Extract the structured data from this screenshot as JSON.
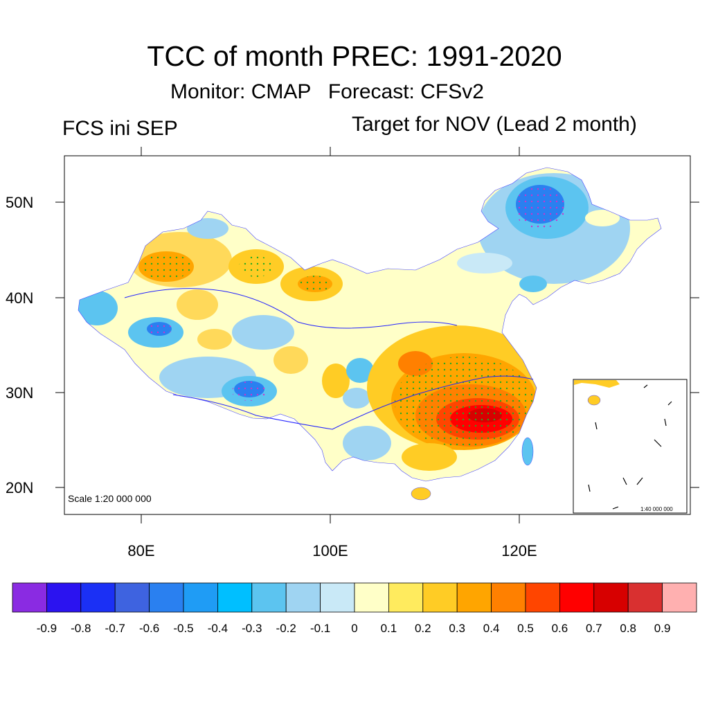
{
  "title": "TCC of month PREC: 1991-2020",
  "subtitle": "Monitor: CMAP   Forecast: CFSv2",
  "left_label": "FCS ini SEP",
  "right_label": "Target for NOV (Lead 2 month)",
  "scale_main": "Scale 1:20 000 000",
  "scale_inset": "1:40 000 000",
  "axes": {
    "lat_labels": [
      "50N",
      "40N",
      "30N",
      "20N"
    ],
    "lon_labels": [
      "80E",
      "100E",
      "120E"
    ]
  },
  "colorbar": {
    "labels": [
      "-0.9",
      "-0.8",
      "-0.7",
      "-0.6",
      "-0.5",
      "-0.4",
      "-0.3",
      "-0.2",
      "-0.1",
      "0",
      "0.1",
      "0.2",
      "0.3",
      "0.4",
      "0.5",
      "0.6",
      "0.7",
      "0.8",
      "0.9"
    ],
    "colors": [
      "#8a2be2",
      "#2b13f0",
      "#1b30f5",
      "#3e63e0",
      "#2a80f0",
      "#1f9cf5",
      "#00bfff",
      "#5cc4f0",
      "#9fd4f2",
      "#c9e9f7",
      "#ffffc8",
      "#ffeb5e",
      "#ffcc25",
      "#ffa500",
      "#ff8000",
      "#ff4500",
      "#ff0000",
      "#d70000",
      "#d93030",
      "#ffb0b0"
    ]
  }
}
